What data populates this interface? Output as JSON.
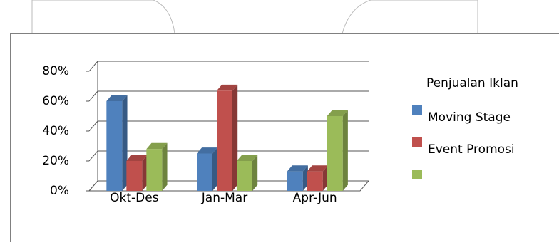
{
  "chart_data": {
    "type": "bar3d",
    "legend_title": "Penjualan Iklan",
    "categories": [
      "Okt-Des",
      "Jan-Mar",
      "Apr-Jun"
    ],
    "series": [
      {
        "name": "Moving Stage",
        "color": "#4f81bd",
        "values": [
          60,
          25,
          13
        ]
      },
      {
        "name": "Event Promosi",
        "color": "#c0504d",
        "values": [
          20,
          67,
          13
        ]
      },
      {
        "color": "#9bbb59",
        "values": [
          28,
          20,
          50
        ]
      }
    ],
    "ylim": [
      0,
      80
    ],
    "yticks": [
      {
        "value": 0,
        "label": "0%"
      },
      {
        "value": 20,
        "label": "20%"
      },
      {
        "value": 40,
        "label": "40%"
      },
      {
        "value": 60,
        "label": "60%"
      },
      {
        "value": 80,
        "label": "80%"
      }
    ],
    "grid": true,
    "legend": "right"
  }
}
